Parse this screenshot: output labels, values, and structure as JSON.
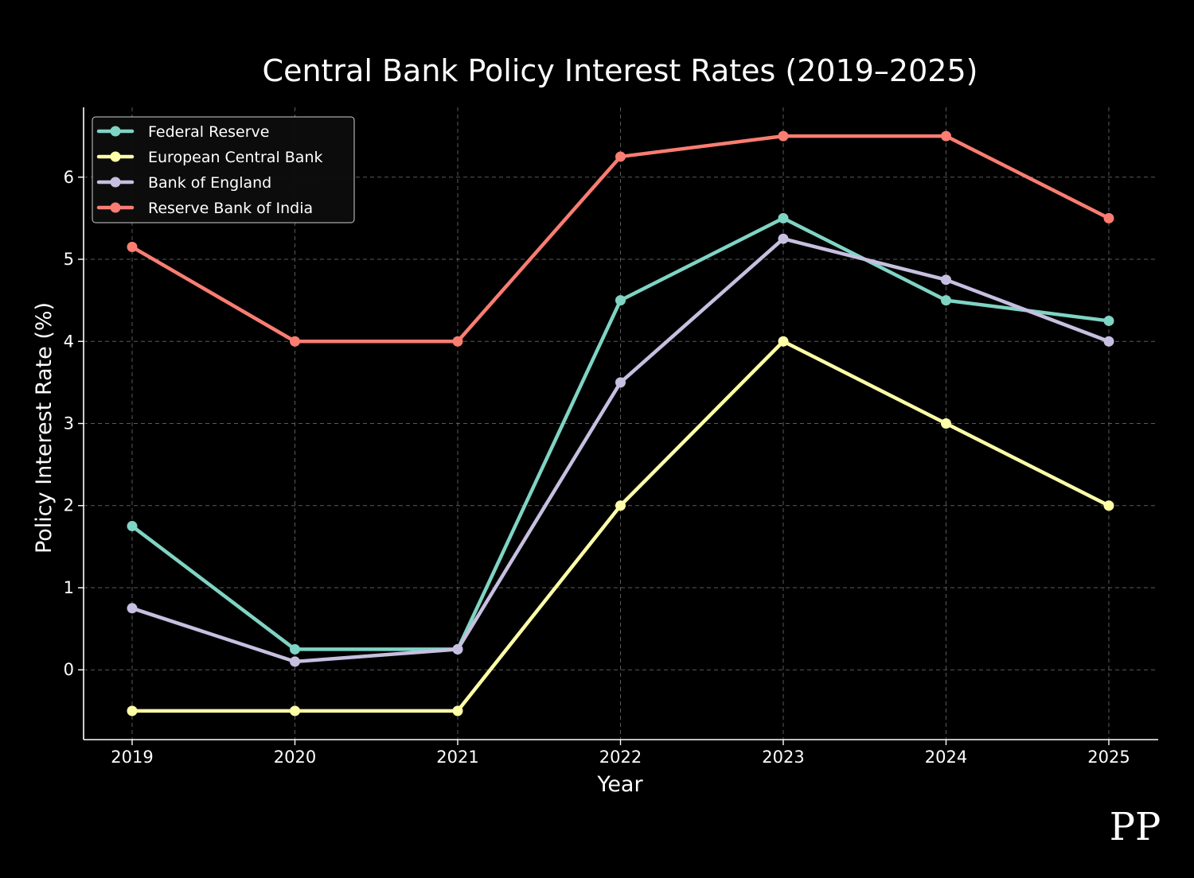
{
  "chart_data": {
    "type": "line",
    "title": "Central Bank Policy Interest Rates (2019–2025)",
    "xlabel": "Year",
    "ylabel": "Policy Interest Rate (%)",
    "categories": [
      "2019",
      "2020",
      "2021",
      "2022",
      "2023",
      "2024",
      "2025"
    ],
    "yticks": [
      0,
      1,
      2,
      3,
      4,
      5,
      6
    ],
    "ylim": [
      -0.85,
      6.85
    ],
    "grid": true,
    "legend_position": "top-left",
    "series": [
      {
        "name": "Federal Reserve",
        "color": "#7fd4c4",
        "values": [
          1.75,
          0.25,
          0.25,
          4.5,
          5.5,
          4.5,
          4.25
        ]
      },
      {
        "name": "European Central Bank",
        "color": "#ffffa8",
        "values": [
          -0.5,
          -0.5,
          -0.5,
          2.0,
          4.0,
          3.0,
          2.0
        ]
      },
      {
        "name": "Bank of England",
        "color": "#c7bfe0",
        "values": [
          0.75,
          0.1,
          0.25,
          3.5,
          5.25,
          4.75,
          4.0
        ]
      },
      {
        "name": "Reserve Bank of India",
        "color": "#fa7d72",
        "values": [
          5.15,
          4.0,
          4.0,
          6.25,
          6.5,
          6.5,
          5.5
        ]
      }
    ]
  },
  "watermark": "PP"
}
